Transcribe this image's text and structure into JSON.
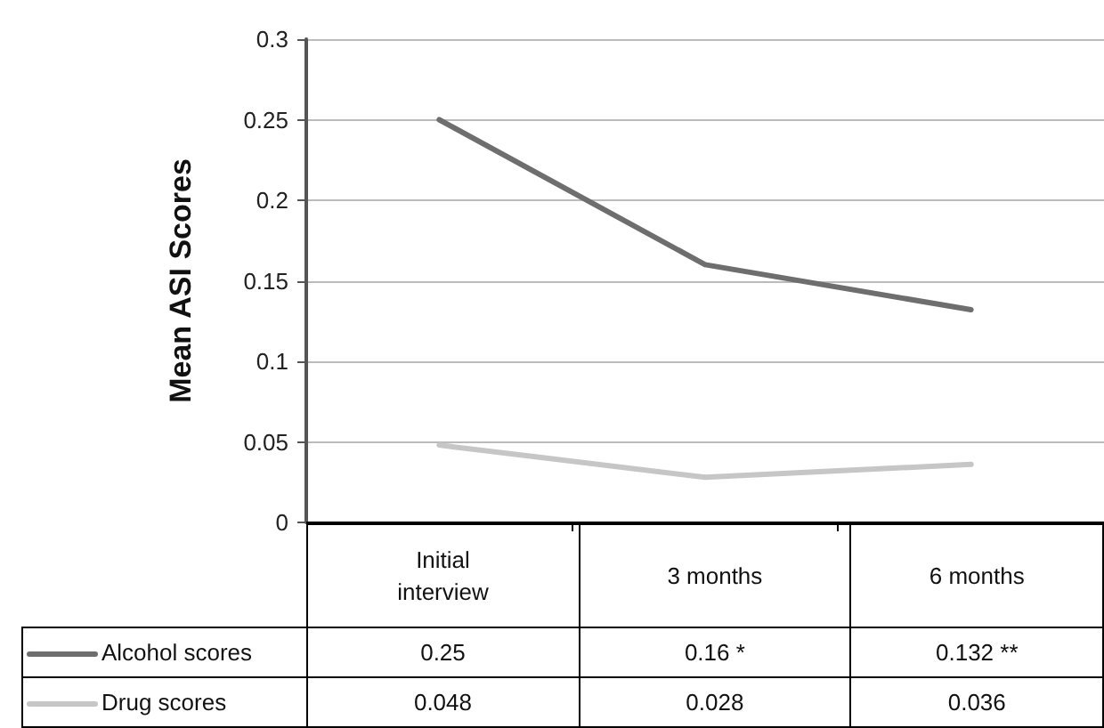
{
  "chart_data": {
    "type": "line",
    "ylabel": "Mean ASI Scores",
    "categories": [
      "Initial\ninterview",
      "3 months",
      "6 months"
    ],
    "series": [
      {
        "name": "Alcohol scores",
        "color": "#6e6e6e",
        "values": [
          0.25,
          0.16,
          0.132
        ],
        "value_labels": [
          "0.25",
          "0.16 *",
          "0.132 **"
        ]
      },
      {
        "name": "Drug scores",
        "color": "#c6c6c6",
        "values": [
          0.048,
          0.028,
          0.036
        ],
        "value_labels": [
          "0.048",
          "0.028",
          "0.036"
        ]
      }
    ],
    "ylim": [
      0,
      0.3
    ],
    "yticks": [
      0,
      0.05,
      0.1,
      0.15,
      0.2,
      0.25,
      0.3
    ],
    "grid": "y",
    "legend": "bottom",
    "marker": "none",
    "line_style": "solid"
  }
}
